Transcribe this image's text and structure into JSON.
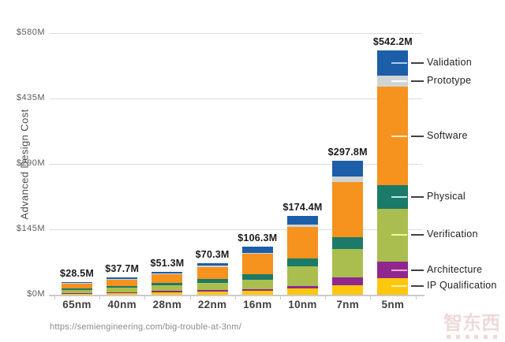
{
  "chart_data": {
    "type": "bar",
    "subtype": "stacked",
    "title": "",
    "ylabel": "Advanced Design Cost",
    "xlabel": "",
    "ylim": [
      0,
      580
    ],
    "grid": "horizontal",
    "legend_position": "right",
    "yticks": [
      {
        "label": "$0M",
        "value": 0
      },
      {
        "label": "$145M",
        "value": 145
      },
      {
        "label": "$290M",
        "value": 290
      },
      {
        "label": "$435M",
        "value": 435
      },
      {
        "label": "$580M",
        "value": 580
      }
    ],
    "categories": [
      "65nm",
      "40nm",
      "28nm",
      "22nm",
      "16nm",
      "10nm",
      "7nm",
      "5nm"
    ],
    "totals": [
      28.5,
      37.7,
      51.3,
      70.3,
      106.3,
      174.4,
      297.8,
      542.2
    ],
    "total_labels": [
      "$28.5M",
      "$37.7M",
      "$51.3M",
      "$70.3M",
      "$106.3M",
      "$174.4M",
      "$297.8M",
      "$542.2M"
    ],
    "series_note": "values in $M, estimated from bar segment heights; series listed bottom-to-top of stack",
    "series": [
      {
        "name": "IP Qualification",
        "color": "#fdc70e",
        "tick_color": "#fff0a8",
        "values": [
          2.5,
          4.0,
          5.5,
          6.5,
          9.0,
          14.0,
          21.0,
          37.0
        ]
      },
      {
        "name": "Architecture",
        "color": "#90278e",
        "tick_color": "#f4a9d4",
        "values": [
          1.5,
          2.0,
          2.5,
          3.5,
          4.0,
          6.0,
          17.0,
          36.0
        ]
      },
      {
        "name": "Verification",
        "color": "#a9be4f",
        "tick_color": "#f2f5a6",
        "values": [
          7.0,
          9.0,
          12.0,
          16.5,
          20.0,
          43.0,
          64.0,
          118.0
        ]
      },
      {
        "name": "Physical",
        "color": "#1b7a68",
        "tick_color": "#bce6f5",
        "values": [
          3.5,
          4.3,
          6.0,
          8.0,
          12.0,
          17.0,
          26.0,
          52.0
        ]
      },
      {
        "name": "Software",
        "color": "#f6921e",
        "tick_color": "#fde7c8",
        "values": [
          10.5,
          14.0,
          19.3,
          27.3,
          45.3,
          71.0,
          122.0,
          218.0
        ]
      },
      {
        "name": "Prototype",
        "color": "#d2d3d5",
        "tick_color": "#ffffff",
        "values": [
          1.0,
          1.2,
          1.5,
          2.0,
          3.0,
          4.0,
          12.0,
          25.2
        ]
      },
      {
        "name": "Validation",
        "color": "#1c5fa8",
        "tick_color": "#a9cdea",
        "values": [
          2.5,
          3.2,
          4.5,
          6.5,
          13.0,
          19.4,
          35.8,
          56.0
        ]
      }
    ],
    "legend_labels": [
      "Validation",
      "Prototype",
      "Software",
      "Physical",
      "Verification",
      "Architecture",
      "IP Qualification"
    ]
  },
  "footer": {
    "source_url": "https://semiengineering.com/big-trouble-at-3nm/"
  },
  "watermark": {
    "text": "智东西"
  }
}
